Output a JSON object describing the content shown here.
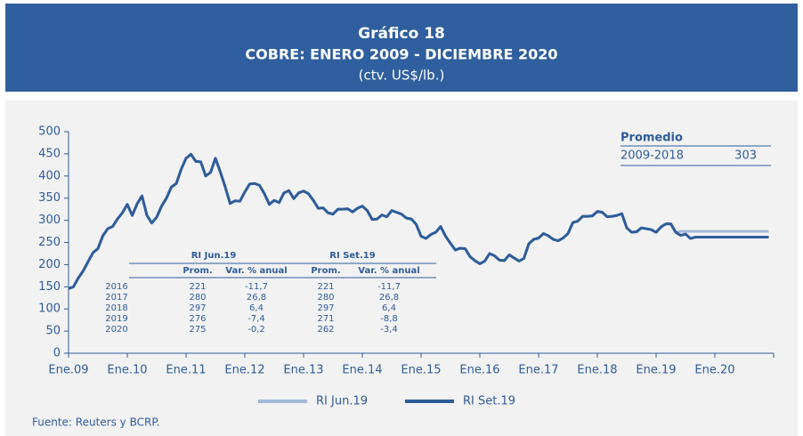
{
  "chart_data": {
    "type": "line",
    "title": "Gráfico 18",
    "subtitle": "COBRE: ENERO 2009 - DICIEMBRE 2020",
    "units": "(ctv. US$/lb.)",
    "source": "Fuente: Reuters y BCRP.",
    "categories": [
      "Ene.09",
      null,
      null,
      null,
      null,
      null,
      null,
      null,
      null,
      null,
      null,
      null,
      "Ene.10",
      null,
      null,
      null,
      null,
      null,
      null,
      null,
      null,
      null,
      null,
      null,
      "Ene.11",
      null,
      null,
      null,
      null,
      null,
      null,
      null,
      null,
      null,
      null,
      null,
      "Ene.12",
      null,
      null,
      null,
      null,
      null,
      null,
      null,
      null,
      null,
      null,
      null,
      "Ene.13",
      null,
      null,
      null,
      null,
      null,
      null,
      null,
      null,
      null,
      null,
      null,
      "Ene.14",
      null,
      null,
      null,
      null,
      null,
      null,
      null,
      null,
      null,
      null,
      null,
      "Ene.15",
      null,
      null,
      null,
      null,
      null,
      null,
      null,
      null,
      null,
      null,
      null,
      "Ene.16",
      null,
      null,
      null,
      null,
      null,
      null,
      null,
      null,
      null,
      null,
      null,
      "Ene.17",
      null,
      null,
      null,
      null,
      null,
      null,
      null,
      null,
      null,
      null,
      null,
      "Ene.18",
      null,
      null,
      null,
      null,
      null,
      null,
      null,
      null,
      null,
      null,
      null,
      "Ene.19",
      null,
      null,
      null,
      null,
      null,
      null,
      null,
      null,
      null,
      null,
      null,
      "Ene.20",
      null,
      null,
      null,
      null,
      null,
      null,
      null,
      null,
      null,
      null,
      null
    ],
    "series": [
      {
        "name": "RI Jun.19",
        "color": "#a3b8d9",
        "values": [
          146,
          150,
          170,
          186,
          207,
          227,
          236,
          265,
          281,
          286,
          303,
          317,
          336,
          311,
          337,
          355,
          311,
          294,
          307,
          332,
          350,
          375,
          383,
          415,
          440,
          449,
          433,
          432,
          400,
          408,
          440,
          409,
          375,
          338,
          344,
          343,
          364,
          382,
          383,
          379,
          360,
          336,
          345,
          340,
          362,
          367,
          349,
          362,
          366,
          360,
          345,
          327,
          328,
          317,
          314,
          325,
          325,
          326,
          319,
          327,
          332,
          322,
          302,
          303,
          312,
          308,
          322,
          318,
          314,
          305,
          303,
          291,
          264,
          259,
          268,
          273,
          286,
          264,
          248,
          233,
          237,
          236,
          218,
          209,
          202,
          208,
          225,
          220,
          210,
          209,
          222,
          215,
          208,
          214,
          247,
          257,
          260,
          270,
          265,
          257,
          254,
          260,
          270,
          295,
          298,
          309,
          309,
          310,
          320,
          318,
          308,
          309,
          311,
          315,
          283,
          273,
          274,
          283,
          281,
          279,
          273,
          285,
          292,
          292,
          273,
          275,
          275,
          275,
          275,
          275,
          275,
          275,
          275,
          275,
          275,
          275,
          275,
          275,
          275,
          275,
          275,
          275,
          275,
          275
        ]
      },
      {
        "name": "RI Set.19",
        "color": "#2e5c9a",
        "values": [
          146,
          150,
          170,
          186,
          207,
          227,
          236,
          265,
          281,
          286,
          303,
          317,
          336,
          311,
          337,
          355,
          311,
          294,
          307,
          332,
          350,
          375,
          383,
          415,
          440,
          449,
          433,
          432,
          400,
          408,
          440,
          409,
          375,
          338,
          344,
          343,
          364,
          382,
          383,
          379,
          360,
          336,
          345,
          340,
          362,
          367,
          349,
          362,
          366,
          360,
          345,
          327,
          328,
          317,
          314,
          325,
          325,
          326,
          319,
          327,
          332,
          322,
          302,
          303,
          312,
          308,
          322,
          318,
          314,
          305,
          303,
          291,
          264,
          259,
          268,
          273,
          286,
          264,
          248,
          233,
          237,
          236,
          218,
          209,
          202,
          208,
          225,
          220,
          210,
          209,
          222,
          215,
          208,
          214,
          247,
          257,
          260,
          270,
          265,
          257,
          254,
          260,
          270,
          295,
          298,
          309,
          309,
          310,
          320,
          318,
          308,
          309,
          311,
          315,
          283,
          273,
          274,
          283,
          281,
          279,
          273,
          285,
          292,
          292,
          273,
          266,
          269,
          259,
          262,
          262,
          262,
          262,
          262,
          262,
          262,
          262,
          262,
          262,
          262,
          262,
          262,
          262,
          262,
          262
        ]
      }
    ],
    "ylim": [
      0,
      500
    ],
    "yticks": [
      0,
      50,
      100,
      150,
      200,
      250,
      300,
      350,
      400,
      450,
      500
    ],
    "table": {
      "groups": [
        "RI Jun.19",
        "RI Set.19"
      ],
      "columns": [
        "Prom.",
        "Var. % anual",
        "Prom.",
        "Var. % anual"
      ],
      "rows": [
        [
          "2016",
          "221",
          "-11,7",
          "221",
          "-11,7"
        ],
        [
          "2017",
          "280",
          "26,8",
          "280",
          "26,8"
        ],
        [
          "2018",
          "297",
          "6,4",
          "297",
          "6,4"
        ],
        [
          "2019",
          "276",
          "-7,4",
          "271",
          "-8,8"
        ],
        [
          "2020",
          "275",
          "-0,2",
          "262",
          "-3,4"
        ]
      ]
    },
    "average": {
      "title": "Promedio",
      "period": "2009-2018",
      "value": "303"
    }
  }
}
